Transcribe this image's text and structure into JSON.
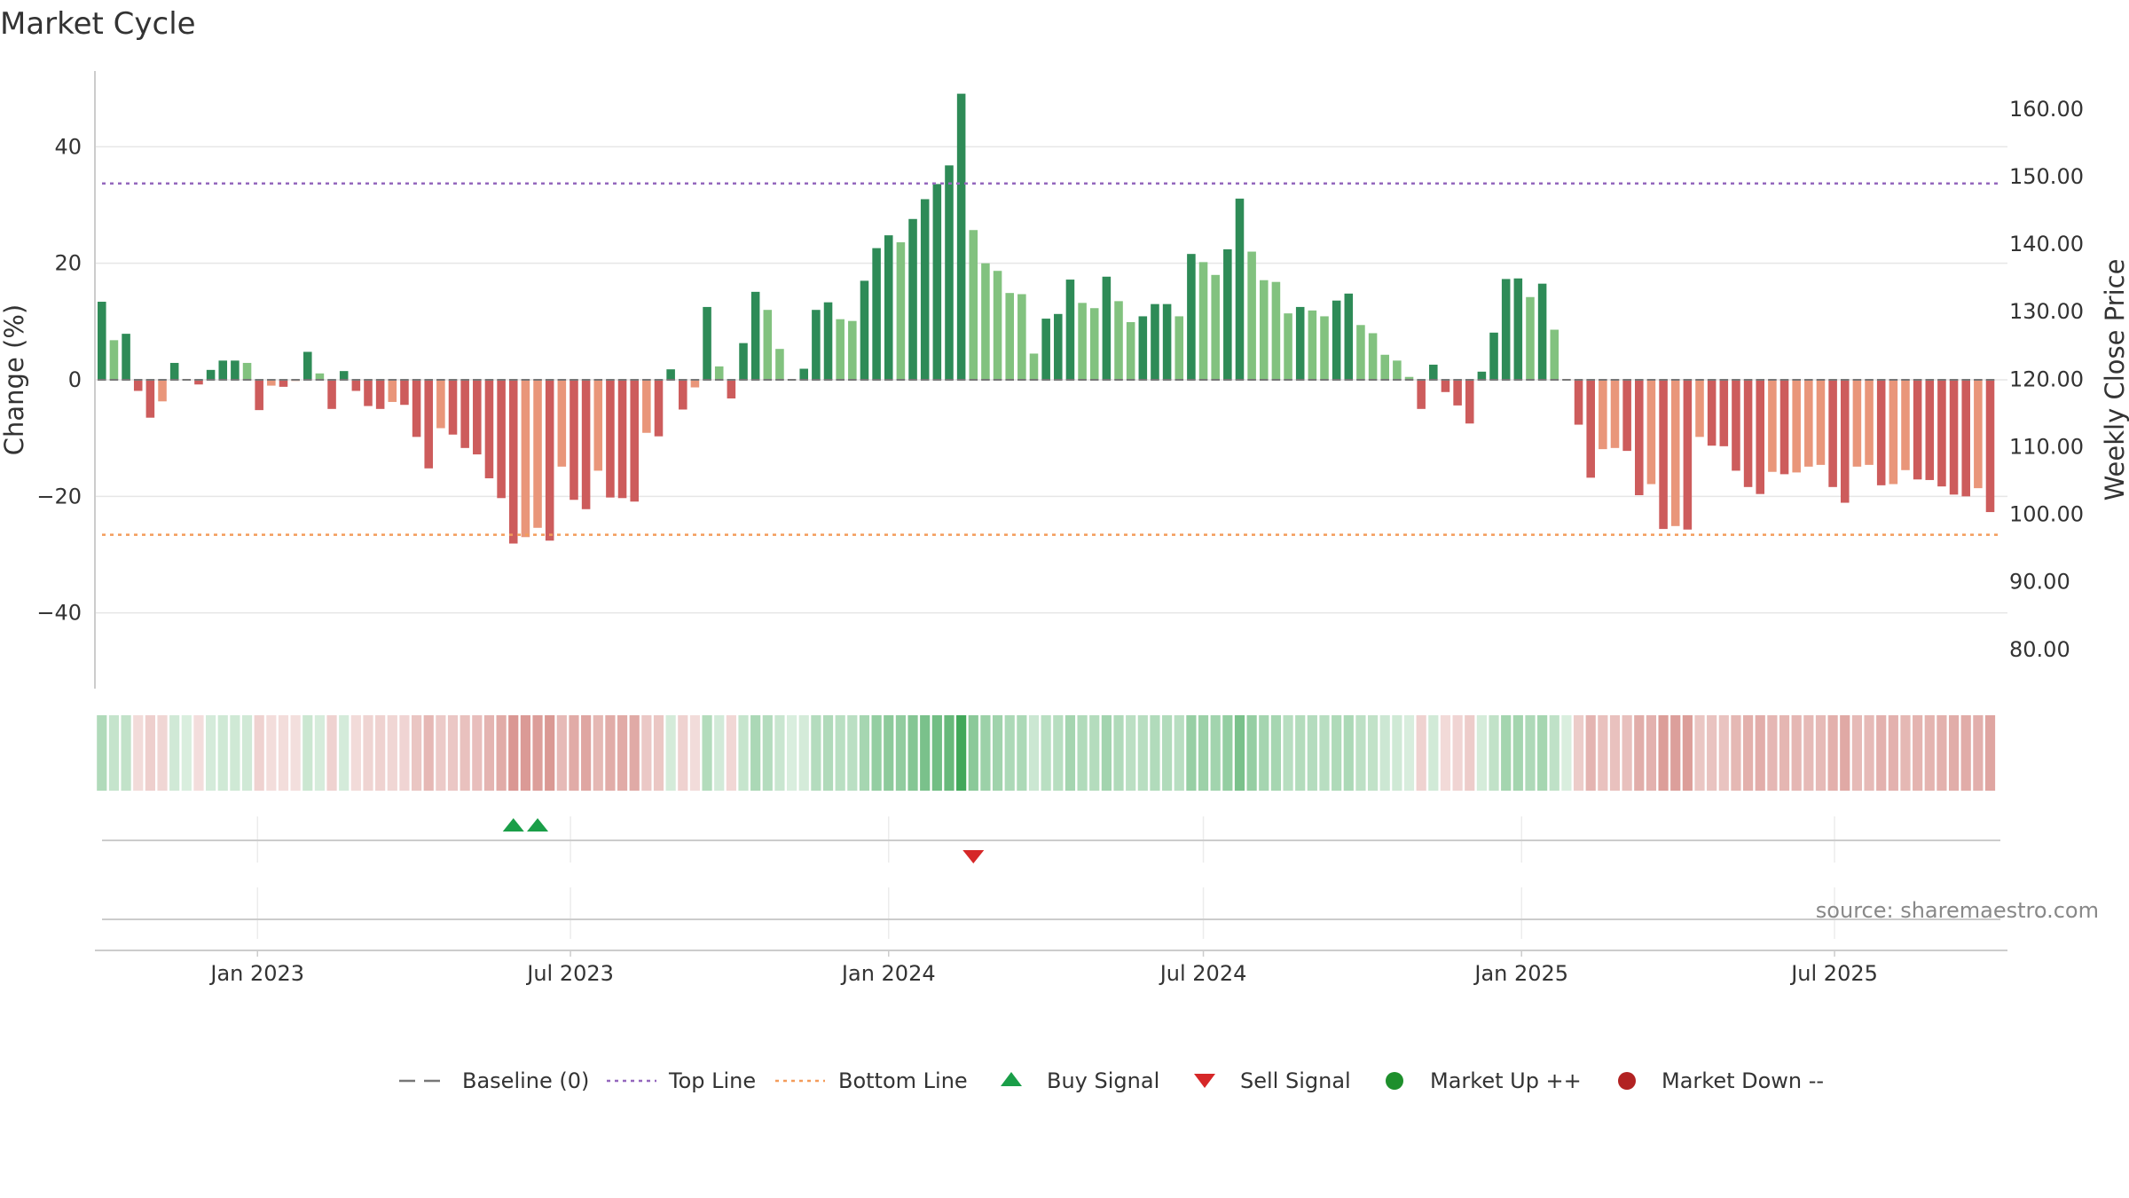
{
  "chart_data": {
    "type": "bar",
    "title": "Market Cycle",
    "ylabel": "Change (%)",
    "y2label": "Weekly Close Price",
    "ylim": [
      -53,
      53
    ],
    "yticks": [
      -40,
      -20,
      0,
      20,
      40
    ],
    "yticks_labels": [
      "−40",
      "−20",
      "0",
      "20",
      "40"
    ],
    "y2lim": [
      74.19,
      165.62
    ],
    "y2ticks": [
      "80.00",
      "90.00",
      "100.00",
      "110.00",
      "120.00",
      "130.00",
      "140.00",
      "150.00",
      "160.00"
    ],
    "x_start": "2022-10-03",
    "x_range": [
      "2022-09-29",
      "2025-10-09"
    ],
    "x_step_days": 7,
    "xticks": [
      {
        "date": "2023-01-01",
        "label": "Jan 2023"
      },
      {
        "date": "2023-07-01",
        "label": "Jul 2023"
      },
      {
        "date": "2024-01-01",
        "label": "Jan 2024"
      },
      {
        "date": "2024-07-01",
        "label": "Jul 2024"
      },
      {
        "date": "2025-01-01",
        "label": "Jan 2025"
      },
      {
        "date": "2025-07-01",
        "label": "Jul 2025"
      }
    ],
    "top_line": 33.7,
    "bottom_line": -26.6,
    "values": [
      13.4,
      6.8,
      7.9,
      -1.9,
      -6.5,
      -3.7,
      2.9,
      0,
      -0.8,
      1.7,
      3.3,
      3.3,
      2.9,
      -5.2,
      -1.0,
      -1.2,
      -0.2,
      4.8,
      1.1,
      -5.0,
      1.5,
      -1.9,
      -4.5,
      -5.0,
      -3.8,
      -4.3,
      -9.8,
      -15.2,
      -8.3,
      -9.4,
      -11.7,
      -12.8,
      -16.9,
      -20.3,
      -28.1,
      -27.0,
      -25.4,
      -27.6,
      -14.9,
      -20.6,
      -22.2,
      -15.6,
      -20.2,
      -20.3,
      -20.9,
      -9.1,
      -9.7,
      1.8,
      -5.1,
      -1.3,
      12.5,
      2.3,
      -3.2,
      6.3,
      15.1,
      12.0,
      5.3,
      0,
      1.9,
      12.0,
      13.3,
      10.4,
      10.1,
      17.0,
      22.6,
      24.8,
      23.6,
      27.6,
      31.0,
      33.6,
      36.8,
      49.1,
      25.7,
      20.0,
      18.7,
      14.9,
      14.7,
      4.5,
      10.5,
      11.3,
      17.2,
      13.2,
      12.3,
      17.7,
      13.5,
      9.9,
      10.9,
      13.0,
      13.0,
      10.9,
      21.6,
      20.2,
      18.0,
      22.4,
      31.1,
      22.0,
      17.1,
      16.8,
      11.4,
      12.5,
      11.9,
      10.9,
      13.6,
      14.8,
      9.4,
      8.0,
      4.3,
      3.3,
      0.5,
      -5.0,
      2.6,
      -2.1,
      -4.4,
      -7.5,
      1.4,
      8.1,
      17.3,
      17.4,
      14.2,
      16.5,
      8.6,
      0,
      -7.7,
      -16.8,
      -11.9,
      -11.7,
      -12.2,
      -19.8,
      -17.9,
      -25.6,
      -25.1,
      -25.7,
      -9.8,
      -11.3,
      -11.4,
      -15.6,
      -18.4,
      -19.6,
      -15.8,
      -16.2,
      -15.9,
      -14.9,
      -14.6,
      -18.4,
      -21.1,
      -14.9,
      -14.6,
      -18.1,
      -17.9,
      -15.5,
      -17.1,
      -17.2,
      -18.3,
      -19.7,
      -20.0,
      -18.6,
      -22.7
    ],
    "buy_signals": [
      {
        "date": "2023-05-29",
        "label": "Buy Signal"
      },
      {
        "date": "2023-06-12",
        "label": "Buy Signal"
      }
    ],
    "sell_signals": [
      {
        "date": "2024-02-19",
        "label": "Sell Signal"
      }
    ],
    "legend": [
      {
        "name": "Baseline (0)",
        "symbol": "dash",
        "color": "#777777"
      },
      {
        "name": "Top Line",
        "symbol": "dotted",
        "color": "#9467bd"
      },
      {
        "name": "Bottom Line",
        "symbol": "dotted",
        "color": "#f39c5b"
      },
      {
        "name": "Buy Signal",
        "symbol": "triangle-up",
        "color": "#1a9e48"
      },
      {
        "name": "Sell Signal",
        "symbol": "triangle-down",
        "color": "#d62728"
      },
      {
        "name": "Market Up ++",
        "symbol": "circle",
        "color": "#1e8f2c"
      },
      {
        "name": "Market Down --",
        "symbol": "circle",
        "color": "#b22222"
      }
    ],
    "legend_position": "bottom-center",
    "grid": true
  },
  "source_text": "source: sharemaestro.com",
  "colors": {
    "strong_up": "#2e8b57",
    "mild_up": "#82c27f",
    "strong_down": "#cd5c5c",
    "mild_down": "#e9967a",
    "top_line": "#9467bd",
    "bottom_line": "#f39c5b",
    "baseline": "#777777",
    "grid": "#e6e6e6",
    "buy": "#1a9e48",
    "sell": "#d62728",
    "heat_up": "#2e9e48",
    "heat_down": "#c05048"
  }
}
